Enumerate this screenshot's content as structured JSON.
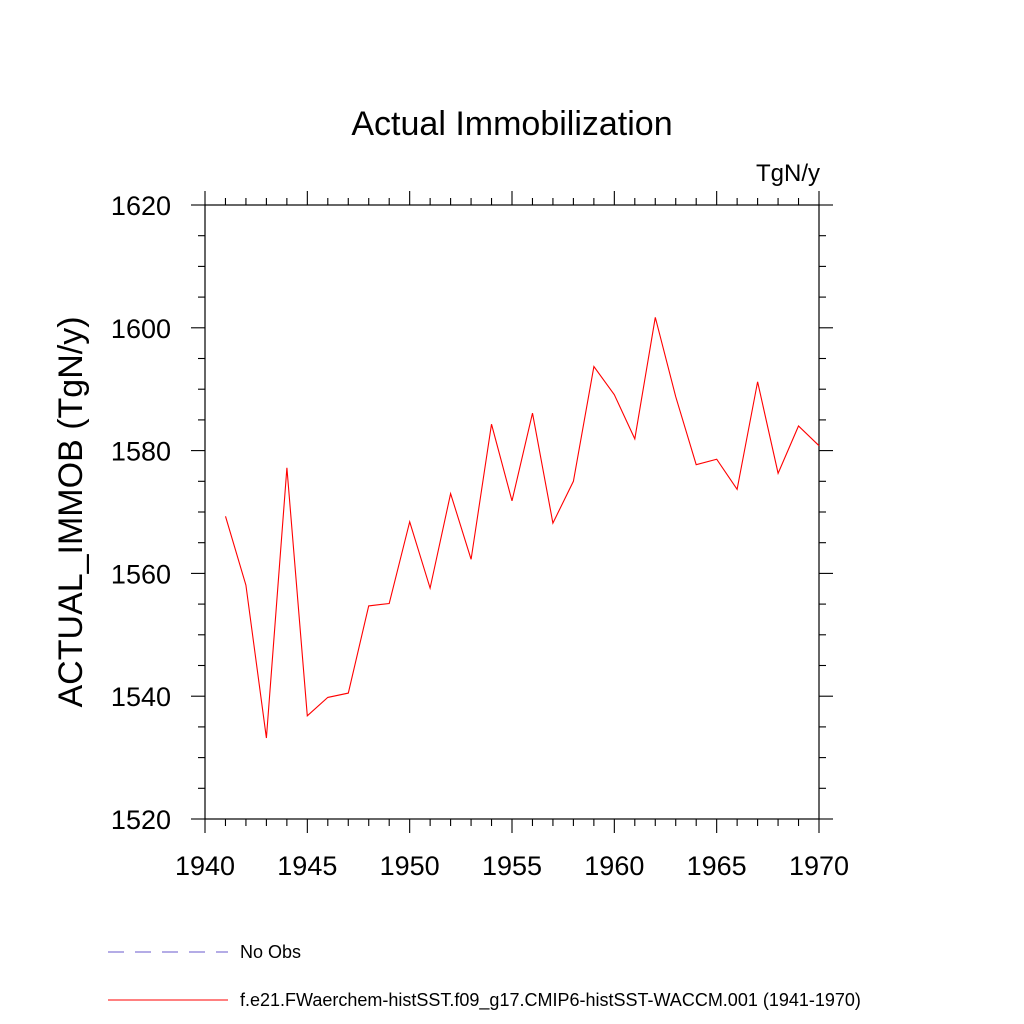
{
  "chart_data": {
    "type": "line",
    "title": "Actual Immobilization",
    "units_label": "TgN/y",
    "xlabel": "",
    "ylabel": "ACTUAL_IMMOB  (TgN/y)",
    "xlim": [
      1940,
      1970
    ],
    "ylim": [
      1520,
      1620
    ],
    "x_ticks": [
      1940,
      1945,
      1950,
      1955,
      1960,
      1965,
      1970
    ],
    "x_tick_labels": [
      "1940",
      "1945",
      "1950",
      "1955",
      "1960",
      "1965",
      "1970"
    ],
    "y_ticks": [
      1520,
      1540,
      1560,
      1580,
      1600,
      1620
    ],
    "y_tick_labels": [
      "1520",
      "1540",
      "1560",
      "1580",
      "1600",
      "1620"
    ],
    "grid": false,
    "legend_position": "bottom-left, below plot",
    "series": [
      {
        "name": "f.e21.FWaerchem-histSST.f09_g17.CMIP6-histSST-WACCM.001 (1941-1970)",
        "color": "#ff0000",
        "style": "solid",
        "x": [
          1941,
          1942,
          1943,
          1944,
          1945,
          1946,
          1947,
          1948,
          1949,
          1950,
          1951,
          1952,
          1953,
          1954,
          1955,
          1956,
          1957,
          1958,
          1959,
          1960,
          1961,
          1962,
          1963,
          1964,
          1965,
          1966,
          1967,
          1968,
          1969,
          1970
        ],
        "y": [
          1569.3,
          1558.1,
          1533.2,
          1577.2,
          1536.8,
          1539.8,
          1540.5,
          1554.7,
          1555.1,
          1568.4,
          1557.6,
          1573.0,
          1562.3,
          1584.3,
          1571.8,
          1586.1,
          1568.2,
          1575.0,
          1593.7,
          1589.1,
          1581.9,
          1601.7,
          1588.8,
          1577.7,
          1578.6,
          1573.7,
          1591.2,
          1576.3,
          1584.0,
          1580.8
        ]
      }
    ],
    "legend": [
      {
        "label": "No Obs",
        "color": "#6a5acd",
        "style": "dashed"
      },
      {
        "label": "f.e21.FWaerchem-histSST.f09_g17.CMIP6-histSST-WACCM.001 (1941-1970)",
        "color": "#ff0000",
        "style": "solid"
      }
    ]
  }
}
